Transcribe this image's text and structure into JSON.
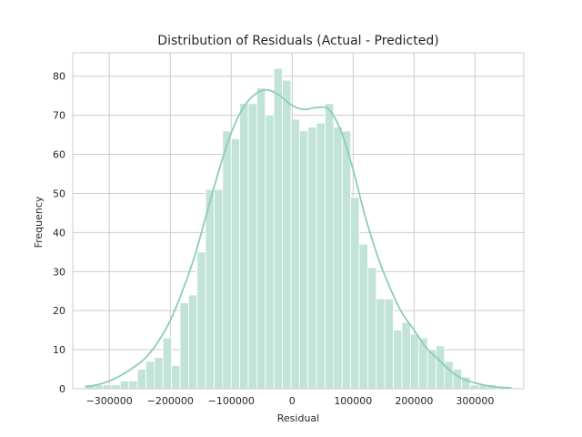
{
  "chart_data": {
    "type": "bar",
    "title": "Distribution of Residuals (Actual - Predicted)",
    "xlabel": "Residual",
    "ylabel": "Frequency",
    "xlim": [
      -360000,
      380000
    ],
    "ylim": [
      0,
      86
    ],
    "x_ticks": [
      -300000,
      -200000,
      -100000,
      0,
      100000,
      200000,
      300000
    ],
    "x_tick_labels": [
      "−300000",
      "−200000",
      "−100000",
      "0",
      "100000",
      "200000",
      "300000"
    ],
    "y_ticks": [
      0,
      10,
      20,
      30,
      40,
      50,
      60,
      70,
      80
    ],
    "y_tick_labels": [
      "0",
      "10",
      "20",
      "30",
      "40",
      "50",
      "60",
      "70",
      "80"
    ],
    "grid": true,
    "bin_edges": [
      -338000,
      -324000,
      -310000,
      -296000,
      -282000,
      -268000,
      -254000,
      -240000,
      -226000,
      -212000,
      -198000,
      -184000,
      -170000,
      -156000,
      -142000,
      -128000,
      -114000,
      -100000,
      -86000,
      -72000,
      -58000,
      -44000,
      -30000,
      -16000,
      -2000,
      12000,
      26000,
      40000,
      54000,
      68000,
      82000,
      96000,
      110000,
      124000,
      138000,
      152000,
      166000,
      180000,
      194000,
      208000,
      222000,
      236000,
      250000,
      264000,
      278000,
      292000,
      306000,
      320000,
      334000,
      348000,
      362000
    ],
    "counts": [
      1,
      1,
      1,
      1,
      2,
      2,
      5,
      7,
      8,
      13,
      6,
      22,
      24,
      35,
      51,
      51,
      66,
      64,
      73,
      73,
      77,
      70,
      82,
      79,
      69,
      66,
      67,
      68,
      73,
      67,
      66,
      49,
      37,
      31,
      23,
      23,
      15,
      17,
      14,
      13,
      10,
      11,
      7,
      5,
      3,
      1,
      1,
      1,
      0,
      0
    ],
    "kde": {
      "x": [
        -340000,
        -320000,
        -300000,
        -280000,
        -260000,
        -240000,
        -220000,
        -200000,
        -180000,
        -160000,
        -140000,
        -120000,
        -100000,
        -80000,
        -60000,
        -40000,
        -20000,
        0,
        20000,
        40000,
        60000,
        80000,
        100000,
        120000,
        140000,
        160000,
        180000,
        200000,
        220000,
        240000,
        260000,
        280000,
        300000,
        320000,
        340000,
        360000
      ],
      "y": [
        0.5,
        1.0,
        2.0,
        3.5,
        5.5,
        8.0,
        12.0,
        17.5,
        25.0,
        34.0,
        45.0,
        56.0,
        65.5,
        72.0,
        75.5,
        76.5,
        75.0,
        72.5,
        71.5,
        72.0,
        71.5,
        66.0,
        56.0,
        44.0,
        34.0,
        26.0,
        19.5,
        15.0,
        10.5,
        7.5,
        4.5,
        2.5,
        1.5,
        0.8,
        0.4,
        0.2
      ]
    },
    "colors": {
      "bar": "#c2e3d8",
      "kde": "#8dcdb8",
      "grid": "#cccccc",
      "spine": "#cccccc"
    }
  }
}
